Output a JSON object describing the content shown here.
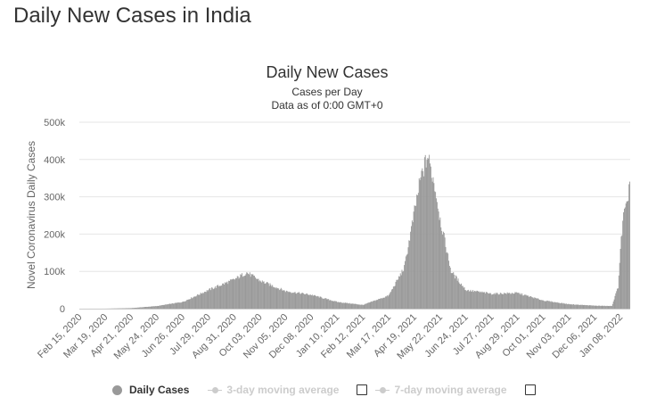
{
  "page": {
    "title": "Daily New Cases in India"
  },
  "legend": {
    "items": [
      {
        "label": "Daily Cases",
        "active": true
      },
      {
        "label": "3-day moving average",
        "active": false
      },
      {
        "label": "7-day moving average",
        "active": false
      }
    ]
  },
  "colors": {
    "bar": "#999999",
    "grid": "#e6e6e6",
    "text": "#333333",
    "axis_text": "#666666",
    "inactive": "#cccccc"
  },
  "chart_data": {
    "type": "bar",
    "title": "Daily New Cases",
    "subtitle": "Cases per Day",
    "subtitle2": "Data as of 0:00 GMT+0",
    "xlabel": "",
    "ylabel": "Novel Coronavirus Daily Cases",
    "ylim": [
      0,
      500000
    ],
    "y_ticks": [
      0,
      100000,
      200000,
      300000,
      400000,
      500000
    ],
    "y_tick_labels": [
      "0",
      "100k",
      "200k",
      "300k",
      "400k",
      "500k"
    ],
    "x_start_date": "2020-02-15",
    "x_end_date": "2022-01-20",
    "x_tick_labels": [
      "Feb 15, 2020",
      "Mar 19, 2020",
      "Apr 21, 2020",
      "May 24, 2020",
      "Jun 26, 2020",
      "Jul 29, 2020",
      "Aug 31, 2020",
      "Oct 03, 2020",
      "Nov 05, 2020",
      "Dec 08, 2020",
      "Jan 10, 2021",
      "Feb 12, 2021",
      "Mar 17, 2021",
      "Apr 19, 2021",
      "May 22, 2021",
      "Jun 24, 2021",
      "Jul 27, 2021",
      "Aug 29, 2021",
      "Oct 01, 2021",
      "Nov 03, 2021",
      "Dec 06, 2021",
      "Jan 08, 2022"
    ],
    "series": [
      {
        "name": "Daily Cases",
        "anchor_dates": [
          "2020-02-15",
          "2020-03-19",
          "2020-04-21",
          "2020-05-24",
          "2020-06-26",
          "2020-07-29",
          "2020-08-31",
          "2020-09-16",
          "2020-10-03",
          "2020-11-05",
          "2020-12-08",
          "2021-01-10",
          "2021-02-12",
          "2021-03-17",
          "2021-04-06",
          "2021-04-19",
          "2021-04-27",
          "2021-05-06",
          "2021-05-15",
          "2021-05-22",
          "2021-06-05",
          "2021-06-24",
          "2021-07-27",
          "2021-08-29",
          "2021-10-01",
          "2021-11-03",
          "2021-12-06",
          "2021-12-28",
          "2022-01-05",
          "2022-01-08",
          "2022-01-12",
          "2022-01-16",
          "2022-01-20"
        ],
        "anchor_values": [
          0,
          100,
          1500,
          7000,
          18000,
          50000,
          78000,
          97000,
          75000,
          47000,
          37000,
          18000,
          10000,
          35000,
          110000,
          260000,
          350000,
          410000,
          330000,
          240000,
          100000,
          50000,
          40000,
          42000,
          22000,
          12000,
          8000,
          7000,
          58000,
          160000,
          250000,
          270000,
          345000
        ]
      }
    ]
  }
}
